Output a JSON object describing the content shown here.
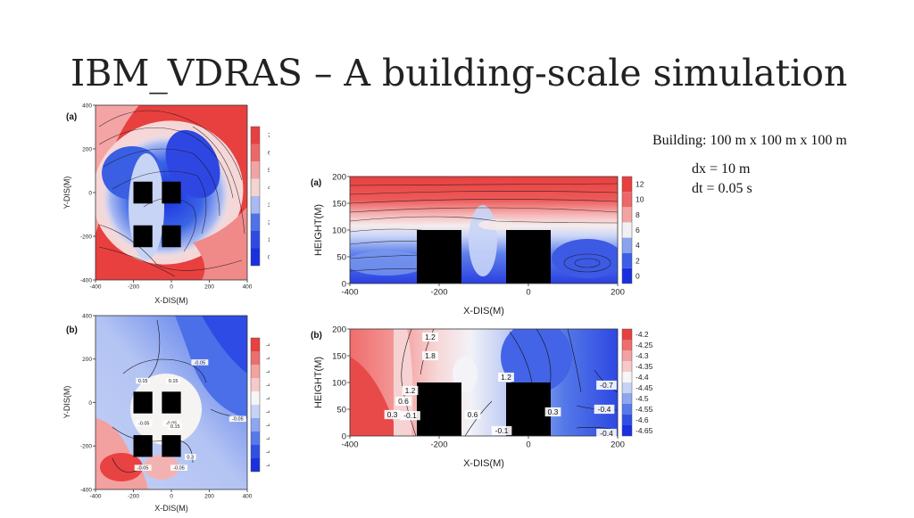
{
  "slide": {
    "title": "IBM_VDRAS – A building-scale simulation",
    "notes": {
      "building": "Building: 100 m x 100 m x 100 m",
      "dx": "dx = 10 m",
      "dt": "dt = 0.05 s"
    }
  },
  "colors": {
    "red": "#e8403f",
    "pink": "#f2a2a2",
    "white": "#f6f6f6",
    "lightblue": "#c7d3f5",
    "blue": "#3a64e6",
    "darkblue": "#1a2fe0",
    "building": "#000000"
  },
  "chart_data": [
    {
      "id": "top-left",
      "type": "heatmap",
      "panel_label": "(a)",
      "xlabel": "X-DIS(M)",
      "ylabel": "Y-DIS(M)",
      "xlim": [
        -400,
        400
      ],
      "ylim": [
        -400,
        400
      ],
      "xticks": [
        -400,
        -200,
        0,
        200,
        400
      ],
      "yticks": [
        -400,
        -200,
        0,
        200,
        400
      ],
      "colorbar": [
        "0",
        "1",
        "2",
        "3",
        "4",
        "5",
        "6",
        "7"
      ],
      "buildings": [
        [
          -150,
          0
        ],
        [
          0,
          0
        ],
        [
          -150,
          -200
        ],
        [
          0,
          -200
        ]
      ],
      "building_size": 100,
      "contour_labels": []
    },
    {
      "id": "top-right",
      "type": "heatmap",
      "panel_label": "(a)",
      "xlabel": "X-DIS(M)",
      "ylabel": "HEIGHT(M)",
      "xlim": [
        -400,
        200
      ],
      "ylim": [
        0,
        200
      ],
      "xticks": [
        -400,
        -200,
        0,
        200
      ],
      "yticks": [
        0,
        50,
        100,
        150,
        200
      ],
      "colorbar": [
        "0",
        "2",
        "4",
        "6",
        "8",
        "10",
        "12"
      ],
      "buildings": [
        [
          -200,
          50
        ],
        [
          0,
          50
        ]
      ],
      "building_size": 100,
      "contour_labels": []
    },
    {
      "id": "bottom-left",
      "type": "heatmap",
      "panel_label": "(b)",
      "xlabel": "X-DIS(M)",
      "ylabel": "Y-DIS(M)",
      "xlim": [
        -400,
        400
      ],
      "ylim": [
        -400,
        400
      ],
      "xticks": [
        -400,
        -200,
        0,
        200,
        400
      ],
      "yticks": [
        -400,
        -200,
        0,
        200,
        400
      ],
      "colorbar": [
        "-4.65",
        "-4.6",
        "-4.55",
        "-4.5",
        "-4.45",
        "-4.4",
        "-4.35",
        "-4.3",
        "-4.25",
        "-4.2"
      ],
      "buildings": [
        [
          -150,
          0
        ],
        [
          0,
          0
        ],
        [
          -150,
          -200
        ],
        [
          0,
          -200
        ]
      ],
      "building_size": 100,
      "contour_labels": [
        {
          "x": -150,
          "y": 100,
          "text": "0.15"
        },
        {
          "x": 10,
          "y": 100,
          "text": "0.15"
        },
        {
          "x": 150,
          "y": 185,
          "text": "-0.05"
        },
        {
          "x": -145,
          "y": -95,
          "text": "-0.05"
        },
        {
          "x": 0,
          "y": -95,
          "text": "-0.05"
        },
        {
          "x": 20,
          "y": -110,
          "text": "0.15"
        },
        {
          "x": 350,
          "y": -75,
          "text": "-0.05"
        },
        {
          "x": -150,
          "y": -300,
          "text": "-0.05"
        },
        {
          "x": 40,
          "y": -300,
          "text": "-0.05"
        },
        {
          "x": 100,
          "y": -250,
          "text": "0.3"
        }
      ]
    },
    {
      "id": "bottom-right",
      "type": "heatmap",
      "panel_label": "(b)",
      "xlabel": "X-DIS(M)",
      "ylabel": "HEIGHT(M)",
      "xlim": [
        -400,
        200
      ],
      "ylim": [
        0,
        200
      ],
      "xticks": [
        -400,
        -200,
        0,
        200
      ],
      "yticks": [
        0,
        50,
        100,
        150,
        200
      ],
      "colorbar": [
        "-4.65",
        "-4.6",
        "-4.55",
        "-4.5",
        "-4.45",
        "-4.4",
        "-4.35",
        "-4.3",
        "-4.25",
        "-4.2"
      ],
      "buildings": [
        [
          -200,
          50
        ],
        [
          0,
          50
        ]
      ],
      "building_size": 100,
      "contour_labels": [
        {
          "x": -220,
          "y": 185,
          "text": "1.2"
        },
        {
          "x": -220,
          "y": 150,
          "text": "1.8"
        },
        {
          "x": -265,
          "y": 85,
          "text": "1.2"
        },
        {
          "x": -280,
          "y": 65,
          "text": "0.6"
        },
        {
          "x": -305,
          "y": 40,
          "text": "0.3"
        },
        {
          "x": -265,
          "y": 38,
          "text": "-0.1"
        },
        {
          "x": -125,
          "y": 40,
          "text": "0.6"
        },
        {
          "x": -50,
          "y": 110,
          "text": "1.2"
        },
        {
          "x": -60,
          "y": 10,
          "text": "-0.1"
        },
        {
          "x": 55,
          "y": 45,
          "text": "0.3"
        },
        {
          "x": 175,
          "y": 95,
          "text": "-0.7"
        },
        {
          "x": 170,
          "y": 50,
          "text": "-0.4"
        },
        {
          "x": 175,
          "y": 5,
          "text": "-0.4"
        }
      ]
    }
  ]
}
